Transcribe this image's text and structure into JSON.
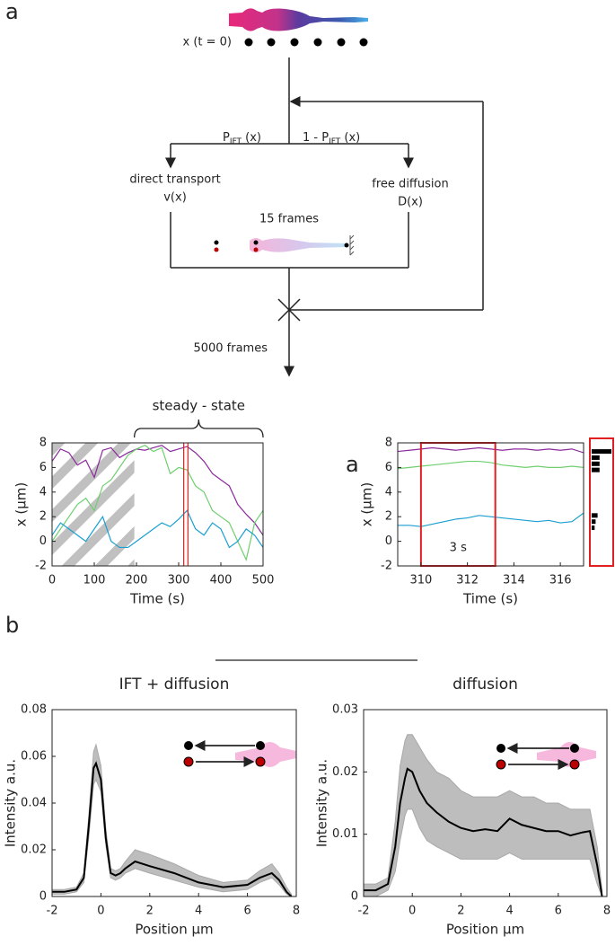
{
  "panel_labels": [
    "a",
    "a",
    "b"
  ],
  "diagram": {
    "x0_label": "x (t = 0)",
    "p_left": {
      "main": "P",
      "sub": "IFT",
      "tail": " (x)"
    },
    "p_right": {
      "main": "1  -  P",
      "sub": "IFT",
      "tail": " (x)"
    },
    "left_branch": [
      "direct transport",
      "v(x)"
    ],
    "right_branch": [
      "free diffusion",
      "D(x)"
    ],
    "inner_frames": "15 frames",
    "outer_frames": "5000 frames"
  },
  "chart_data": [
    {
      "type": "line",
      "xlabel": "Time (s)",
      "ylabel": "x (μm)",
      "annotation": "steady - state",
      "bracket": [
        195,
        500
      ],
      "xlim": [
        0,
        500
      ],
      "ylim": [
        -2,
        8
      ],
      "xticks": [
        0,
        100,
        200,
        300,
        400,
        500
      ],
      "yticks": [
        -2,
        0,
        2,
        4,
        6,
        8
      ],
      "highlight": [
        312,
        322
      ],
      "x": [
        0,
        20,
        40,
        60,
        80,
        100,
        120,
        140,
        160,
        180,
        200,
        220,
        240,
        260,
        280,
        300,
        320,
        340,
        360,
        380,
        400,
        420,
        440,
        460,
        480,
        500
      ],
      "series": [
        {
          "color": "#8b2a9b",
          "values": [
            6.5,
            7.5,
            7.2,
            6.2,
            6.6,
            5.2,
            7.4,
            7.6,
            6.8,
            7.2,
            7.5,
            7.4,
            7.6,
            7.8,
            7.3,
            7.5,
            7.7,
            7.2,
            6.5,
            5.5,
            5,
            4.5,
            3,
            2.2,
            1.5,
            0.5
          ]
        },
        {
          "color": "#6fcf6f",
          "values": [
            0,
            1,
            2,
            3,
            3.5,
            2.5,
            4.5,
            5,
            6,
            7,
            7.5,
            7.8,
            7.3,
            7.6,
            5.5,
            6,
            5.8,
            4.5,
            4,
            2.5,
            2,
            1.5,
            0,
            -1.5,
            1.5,
            2.5
          ]
        },
        {
          "color": "#1a9fd0",
          "values": [
            0.5,
            1.5,
            1,
            0.5,
            0,
            1,
            2,
            0,
            -0.5,
            -0.5,
            0,
            0.5,
            1,
            1.5,
            1.2,
            1.8,
            2.5,
            1,
            0.5,
            1.5,
            1,
            -0.5,
            0,
            1,
            0.5,
            -0.5
          ]
        }
      ]
    },
    {
      "type": "line",
      "xlabel": "Time (s)",
      "ylabel": "x (μm)",
      "annotation": "3 s",
      "xlim": [
        309,
        317
      ],
      "ylim": [
        -2,
        8
      ],
      "xticks": [
        310,
        312,
        314,
        316
      ],
      "yticks": [
        -2,
        0,
        2,
        4,
        6,
        8
      ],
      "window": [
        310,
        313.2
      ],
      "x": [
        309,
        309.5,
        310,
        310.5,
        311,
        311.5,
        312,
        312.5,
        313,
        313.5,
        314,
        314.5,
        315,
        315.5,
        316,
        316.5,
        317
      ],
      "series": [
        {
          "color": "#8b2a9b",
          "values": [
            7.3,
            7.4,
            7.5,
            7.6,
            7.5,
            7.4,
            7.5,
            7.6,
            7.5,
            7.4,
            7.5,
            7.5,
            7.4,
            7.5,
            7.4,
            7.5,
            7.2
          ]
        },
        {
          "color": "#6fcf6f",
          "values": [
            5.9,
            6,
            6.1,
            6.2,
            6.3,
            6.4,
            6.5,
            6.5,
            6.4,
            6.2,
            6.1,
            6,
            6.1,
            6,
            6,
            6.1,
            6
          ]
        },
        {
          "color": "#1a9fd0",
          "values": [
            1.3,
            1.3,
            1.2,
            1.4,
            1.6,
            1.8,
            1.9,
            2.1,
            2,
            1.9,
            1.8,
            1.7,
            1.6,
            1.7,
            1.5,
            1.6,
            2.3
          ]
        }
      ],
      "side_bars": {
        "y": [
          7.3,
          6.8,
          6.3,
          5.8,
          2.1,
          1.6,
          1.1
        ],
        "values": [
          10,
          4,
          4,
          4,
          3,
          2,
          1.5
        ]
      }
    },
    {
      "type": "line",
      "title": "IFT + diffusion",
      "xlabel": "Position μm",
      "ylabel": "Intensity a.u.",
      "xlim": [
        -2,
        8
      ],
      "ylim": [
        0,
        0.08
      ],
      "xticks": [
        -2,
        0,
        2,
        4,
        6,
        8
      ],
      "yticks": [
        0,
        0.02,
        0.04,
        0.06,
        0.08
      ],
      "x": [
        -2,
        -1.5,
        -1,
        -0.7,
        -0.5,
        -0.3,
        -0.2,
        0,
        0.2,
        0.4,
        0.6,
        0.8,
        1,
        1.4,
        2,
        3,
        4,
        5,
        6,
        6.5,
        7,
        7.3,
        7.6,
        7.8
      ],
      "band_low": [
        0.001,
        0.001,
        0.002,
        0.006,
        0.025,
        0.048,
        0.05,
        0.045,
        0.022,
        0.008,
        0.007,
        0.008,
        0.01,
        0.012,
        0.01,
        0.007,
        0.004,
        0.002,
        0.003,
        0.006,
        0.008,
        0.005,
        0.001,
        0
      ],
      "band_high": [
        0.003,
        0.003,
        0.004,
        0.01,
        0.034,
        0.062,
        0.065,
        0.056,
        0.029,
        0.012,
        0.011,
        0.012,
        0.015,
        0.02,
        0.018,
        0.014,
        0.009,
        0.006,
        0.007,
        0.011,
        0.014,
        0.01,
        0.004,
        0.001
      ],
      "series": [
        {
          "color": "#000000",
          "values": [
            0.002,
            0.002,
            0.003,
            0.008,
            0.03,
            0.055,
            0.057,
            0.05,
            0.025,
            0.01,
            0.009,
            0.01,
            0.012,
            0.015,
            0.013,
            0.01,
            0.006,
            0.004,
            0.005,
            0.008,
            0.01,
            0.007,
            0.002,
            0
          ]
        }
      ]
    },
    {
      "type": "line",
      "title": "diffusion",
      "xlabel": "Position μm",
      "ylabel": "Intensity a.u.",
      "xlim": [
        -2,
        8
      ],
      "ylim": [
        0,
        0.03
      ],
      "xticks": [
        -2,
        0,
        2,
        4,
        6,
        8
      ],
      "yticks": [
        0,
        0.01,
        0.02,
        0.03
      ],
      "x": [
        -2,
        -1.5,
        -1,
        -0.7,
        -0.5,
        -0.3,
        -0.2,
        0,
        0.3,
        0.6,
        1,
        1.5,
        2,
        2.5,
        3,
        3.5,
        4,
        4.5,
        5,
        5.5,
        6,
        6.5,
        7,
        7.3,
        7.6,
        7.8
      ],
      "band_low": [
        0,
        0,
        0.001,
        0.004,
        0.009,
        0.013,
        0.014,
        0.014,
        0.011,
        0.009,
        0.008,
        0.007,
        0.006,
        0.006,
        0.006,
        0.006,
        0.007,
        0.006,
        0.006,
        0.006,
        0.006,
        0.006,
        0.006,
        0.006,
        0.002,
        0
      ],
      "band_high": [
        0.002,
        0.002,
        0.003,
        0.012,
        0.021,
        0.025,
        0.026,
        0.026,
        0.024,
        0.022,
        0.02,
        0.019,
        0.017,
        0.016,
        0.016,
        0.016,
        0.017,
        0.016,
        0.016,
        0.015,
        0.015,
        0.014,
        0.014,
        0.014,
        0.008,
        0.001
      ],
      "series": [
        {
          "color": "#000000",
          "values": [
            0.001,
            0.001,
            0.002,
            0.008,
            0.015,
            0.019,
            0.0205,
            0.02,
            0.017,
            0.015,
            0.0135,
            0.012,
            0.011,
            0.0105,
            0.0108,
            0.0105,
            0.0125,
            0.0115,
            0.011,
            0.0105,
            0.0105,
            0.0098,
            0.0103,
            0.0105,
            0.005,
            0
          ]
        }
      ]
    }
  ]
}
